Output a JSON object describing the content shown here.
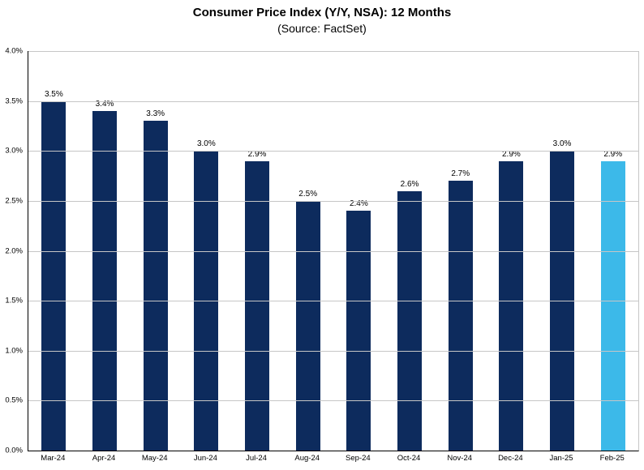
{
  "chart_data": {
    "type": "bar",
    "title": "Consumer Price Index (Y/Y, NSA): 12 Months",
    "subtitle": "(Source: FactSet)",
    "categories": [
      "Mar-24",
      "Apr-24",
      "May-24",
      "Jun-24",
      "Jul-24",
      "Aug-24",
      "Sep-24",
      "Oct-24",
      "Nov-24",
      "Dec-24",
      "Jan-25",
      "Feb-25"
    ],
    "values": [
      3.5,
      3.4,
      3.3,
      3.0,
      2.9,
      2.5,
      2.4,
      2.6,
      2.7,
      2.9,
      3.0,
      2.9
    ],
    "value_labels": [
      "3.5%",
      "3.4%",
      "3.3%",
      "3.0%",
      "2.9%",
      "2.5%",
      "2.4%",
      "2.6%",
      "2.7%",
      "2.9%",
      "3.0%",
      "2.9%"
    ],
    "highlight_index": 11,
    "xlabel": "",
    "ylabel": "",
    "ylim": [
      0,
      4
    ],
    "yticks": [
      {
        "v": 0.0,
        "label": "0.0%"
      },
      {
        "v": 0.5,
        "label": "0.5%"
      },
      {
        "v": 1.0,
        "label": "1.0%"
      },
      {
        "v": 1.5,
        "label": "1.5%"
      },
      {
        "v": 2.0,
        "label": "2.0%"
      },
      {
        "v": 2.5,
        "label": "2.5%"
      },
      {
        "v": 3.0,
        "label": "3.0%"
      },
      {
        "v": 3.5,
        "label": "3.5%"
      },
      {
        "v": 4.0,
        "label": "4.0%"
      }
    ],
    "grid": true,
    "legend": "none"
  },
  "colors": {
    "bar": "#0d2b5d",
    "highlight_bar": "#3cb9e9",
    "gridline": "#c6c6c6",
    "axis": "#000000"
  }
}
